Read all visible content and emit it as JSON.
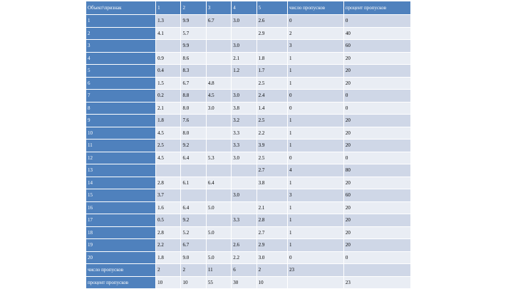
{
  "table": {
    "headers": [
      "Объект\\признак",
      "1",
      "2",
      "3",
      "4",
      "5",
      "число пропусков",
      "процент пропусков"
    ],
    "rows": [
      [
        "1",
        "1.3",
        "9.9",
        "6.7",
        "3.0",
        "2.6",
        "0",
        "0"
      ],
      [
        "2",
        "4.1",
        "5.7",
        "",
        "",
        "2.9",
        "2",
        "40"
      ],
      [
        "3",
        "",
        "9.9",
        "",
        "3.0",
        "",
        "3",
        "60"
      ],
      [
        "4",
        "0.9",
        "8.6",
        "",
        "2.1",
        "1.8",
        "1",
        "20"
      ],
      [
        "5",
        "0.4",
        "8.3",
        "",
        "1.2",
        "1.7",
        "1",
        "20"
      ],
      [
        "6",
        "1.5",
        "6.7",
        "4.8",
        "",
        "2.5",
        "1",
        "20"
      ],
      [
        "7",
        "0.2",
        "8.8",
        "4.5",
        "3.0",
        "2.4",
        "0",
        "0"
      ],
      [
        "8",
        "2.1",
        "8.0",
        "3.0",
        "3.8",
        "1.4",
        "0",
        "0"
      ],
      [
        "9",
        "1.8",
        "7.6",
        "",
        "3.2",
        "2.5",
        "1",
        "20"
      ],
      [
        "10",
        "4.5",
        "8.0",
        "",
        "3.3",
        "2.2",
        "1",
        "20"
      ],
      [
        "11",
        "2.5",
        "9.2",
        "",
        "3.3",
        "3.9",
        "1",
        "20"
      ],
      [
        "12",
        "4.5",
        "6.4",
        "5.3",
        "3.0",
        "2.5",
        "0",
        "0"
      ],
      [
        "13",
        "",
        "",
        "",
        "",
        "2.7",
        "4",
        "80"
      ],
      [
        "14",
        "2.8",
        "6.1",
        "6.4",
        "",
        "3.8",
        "1",
        "20"
      ],
      [
        "15",
        "3.7",
        "",
        "",
        "3.0",
        "",
        "3",
        "60"
      ],
      [
        "16",
        "1.6",
        "6.4",
        "5.0",
        "",
        "2.1",
        "1",
        "20"
      ],
      [
        "17",
        "0.5",
        "9.2",
        "",
        "3.3",
        "2.8",
        "1",
        "20"
      ],
      [
        "18",
        "2.8",
        "5.2",
        "5.0",
        "",
        "2.7",
        "1",
        "20"
      ],
      [
        "19",
        "2.2",
        "6.7",
        "",
        "2.6",
        "2.9",
        "1",
        "20"
      ],
      [
        "20",
        "1.8",
        "9.0",
        "5.0",
        "2.2",
        "3.0",
        "0",
        "0"
      ],
      [
        "число пропусков",
        "2",
        "2",
        "11",
        "6",
        "2",
        "23",
        ""
      ],
      [
        "процент пропусков",
        "10",
        "10",
        "55",
        "30",
        "10",
        "",
        "23"
      ]
    ]
  },
  "colors": {
    "header": "#4f81bd",
    "row_dark": "#cfd7e7",
    "row_light": "#e9edf4"
  }
}
